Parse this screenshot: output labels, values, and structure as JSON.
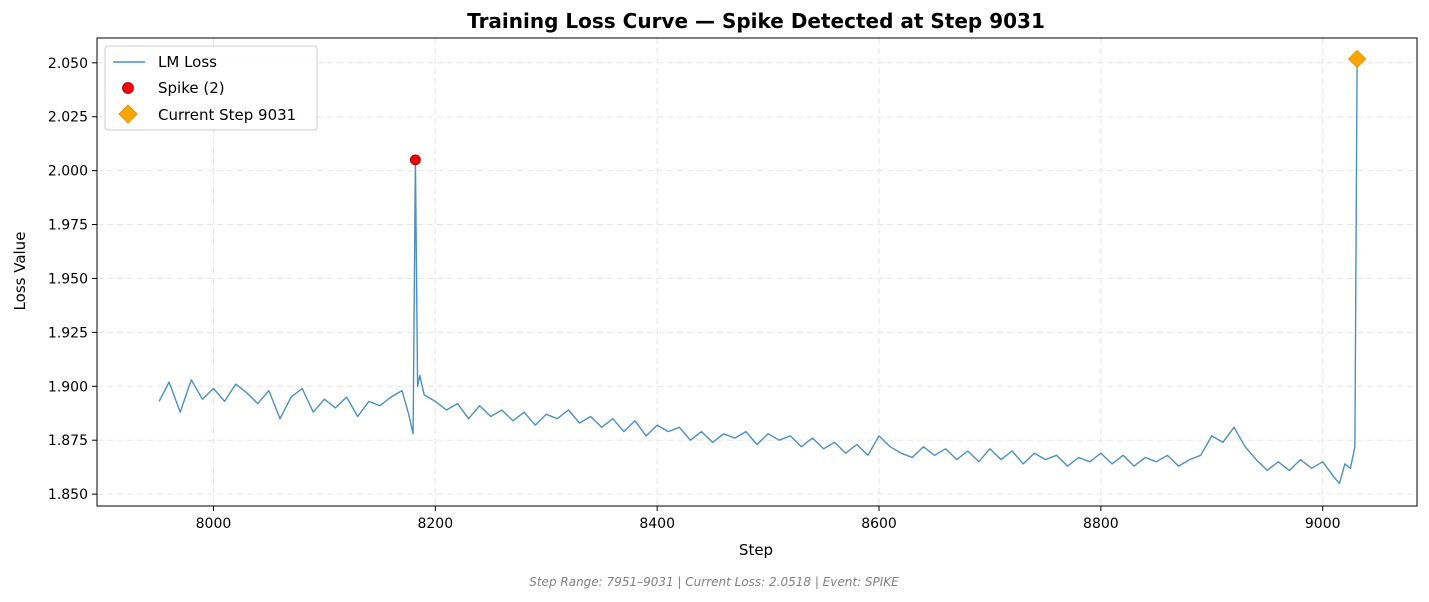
{
  "chart_data": {
    "type": "line",
    "title": "Training Loss Curve — Spike Detected at Step 9031",
    "xlabel": "Step",
    "ylabel": "Loss Value",
    "xlim": [
      7895,
      9085
    ],
    "ylim": [
      1.8445,
      2.0615
    ],
    "xticks": [
      8000,
      8200,
      8400,
      8600,
      8800,
      9000
    ],
    "yticks": [
      1.85,
      1.875,
      1.9,
      1.925,
      1.95,
      1.975,
      2.0,
      2.025,
      2.05
    ],
    "ytick_format": 3,
    "grid": true,
    "legend_position": "top-left",
    "footer": "Step Range: 7951–9031 | Current Loss: 2.0518 | Event: SPIKE",
    "colors": {
      "line": "#4a90c2",
      "spike": "#ff0000",
      "current": "#ffa500"
    },
    "series": [
      {
        "name": "LM Loss",
        "kind": "line",
        "x": [
          7951,
          7960,
          7970,
          7980,
          7990,
          8000,
          8010,
          8020,
          8030,
          8040,
          8050,
          8060,
          8070,
          8080,
          8090,
          8100,
          8110,
          8120,
          8130,
          8140,
          8150,
          8160,
          8170,
          8176,
          8180,
          8182,
          8184,
          8186,
          8190,
          8200,
          8210,
          8220,
          8230,
          8240,
          8250,
          8260,
          8270,
          8280,
          8290,
          8300,
          8310,
          8320,
          8330,
          8340,
          8350,
          8360,
          8370,
          8380,
          8390,
          8400,
          8410,
          8420,
          8430,
          8440,
          8450,
          8460,
          8470,
          8480,
          8490,
          8500,
          8510,
          8520,
          8530,
          8540,
          8550,
          8560,
          8570,
          8580,
          8590,
          8600,
          8610,
          8620,
          8630,
          8640,
          8650,
          8660,
          8670,
          8680,
          8690,
          8700,
          8710,
          8720,
          8730,
          8740,
          8750,
          8760,
          8770,
          8780,
          8790,
          8800,
          8810,
          8820,
          8830,
          8840,
          8850,
          8860,
          8870,
          8880,
          8890,
          8900,
          8910,
          8920,
          8930,
          8940,
          8950,
          8960,
          8970,
          8980,
          8990,
          9000,
          9010,
          9015,
          9020,
          9025,
          9029,
          9031
        ],
        "y": [
          1.893,
          1.902,
          1.888,
          1.903,
          1.894,
          1.899,
          1.893,
          1.901,
          1.897,
          1.892,
          1.898,
          1.885,
          1.895,
          1.899,
          1.888,
          1.894,
          1.89,
          1.895,
          1.886,
          1.893,
          1.891,
          1.895,
          1.898,
          1.887,
          1.878,
          2.005,
          1.9,
          1.905,
          1.896,
          1.893,
          1.889,
          1.892,
          1.885,
          1.891,
          1.886,
          1.889,
          1.884,
          1.888,
          1.882,
          1.887,
          1.885,
          1.889,
          1.883,
          1.886,
          1.881,
          1.885,
          1.879,
          1.884,
          1.877,
          1.882,
          1.879,
          1.881,
          1.875,
          1.879,
          1.874,
          1.878,
          1.876,
          1.879,
          1.873,
          1.878,
          1.875,
          1.877,
          1.872,
          1.876,
          1.871,
          1.874,
          1.869,
          1.873,
          1.868,
          1.877,
          1.872,
          1.869,
          1.867,
          1.872,
          1.868,
          1.871,
          1.866,
          1.87,
          1.865,
          1.871,
          1.866,
          1.87,
          1.864,
          1.869,
          1.866,
          1.868,
          1.863,
          1.867,
          1.865,
          1.869,
          1.864,
          1.868,
          1.863,
          1.867,
          1.865,
          1.868,
          1.863,
          1.866,
          1.868,
          1.877,
          1.874,
          1.881,
          1.872,
          1.866,
          1.861,
          1.865,
          1.861,
          1.866,
          1.862,
          1.865,
          1.858,
          1.855,
          1.864,
          1.862,
          1.872,
          2.0518
        ]
      },
      {
        "name": "Spike (2)",
        "kind": "points",
        "x": [
          8182
        ],
        "y": [
          2.005
        ]
      },
      {
        "name": "Current Step 9031",
        "kind": "marker",
        "x": [
          9031
        ],
        "y": [
          2.0518
        ]
      }
    ]
  }
}
